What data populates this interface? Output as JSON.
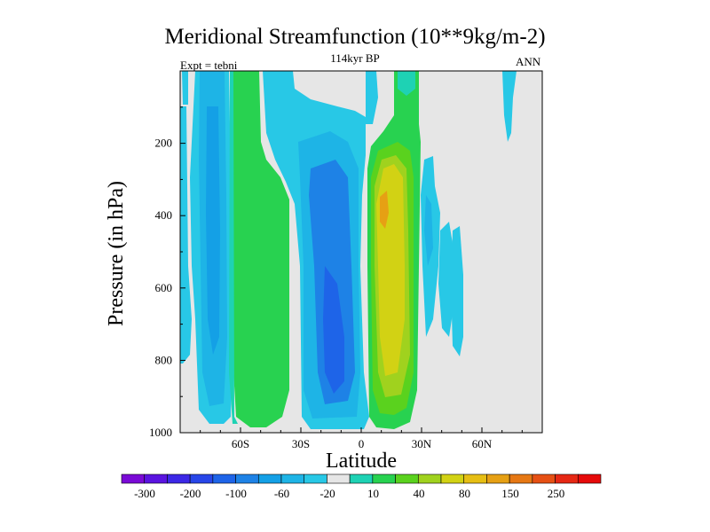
{
  "title": "Meridional Streamfunction (10**9kg/m-2)",
  "subtitle": "114kyr BP",
  "left_label": "Expt = tebni",
  "right_label": "ANN",
  "chart_data": {
    "type": "contour",
    "xlabel": "Latitude",
    "ylabel": "Pressure (in hPa)",
    "x_ticks": [
      "60S",
      "30S",
      "0",
      "30N",
      "60N"
    ],
    "x_tick_values": [
      -60,
      -30,
      0,
      30,
      60
    ],
    "xlim": [
      -90,
      90
    ],
    "y_ticks": [
      "200",
      "400",
      "600",
      "800",
      "1000"
    ],
    "y_tick_values": [
      200,
      400,
      600,
      800,
      1000
    ],
    "ylim": [
      0,
      1000
    ],
    "colorbar": {
      "colors": [
        "#7a0ad6",
        "#5a14e0",
        "#3c28e6",
        "#2846e8",
        "#1e64e8",
        "#1e82e6",
        "#14a0e6",
        "#1eb4e6",
        "#28c8e6",
        "#e6e6e6",
        "#1ed2b4",
        "#28d250",
        "#5ad21e",
        "#a0d21e",
        "#d2d214",
        "#e6be14",
        "#e6a014",
        "#e67814",
        "#e65014",
        "#e62814",
        "#e60a0a"
      ],
      "labels": [
        "-300",
        "-200",
        "-100",
        "-60",
        "-20",
        "10",
        "40",
        "80",
        "150",
        "250"
      ]
    }
  }
}
